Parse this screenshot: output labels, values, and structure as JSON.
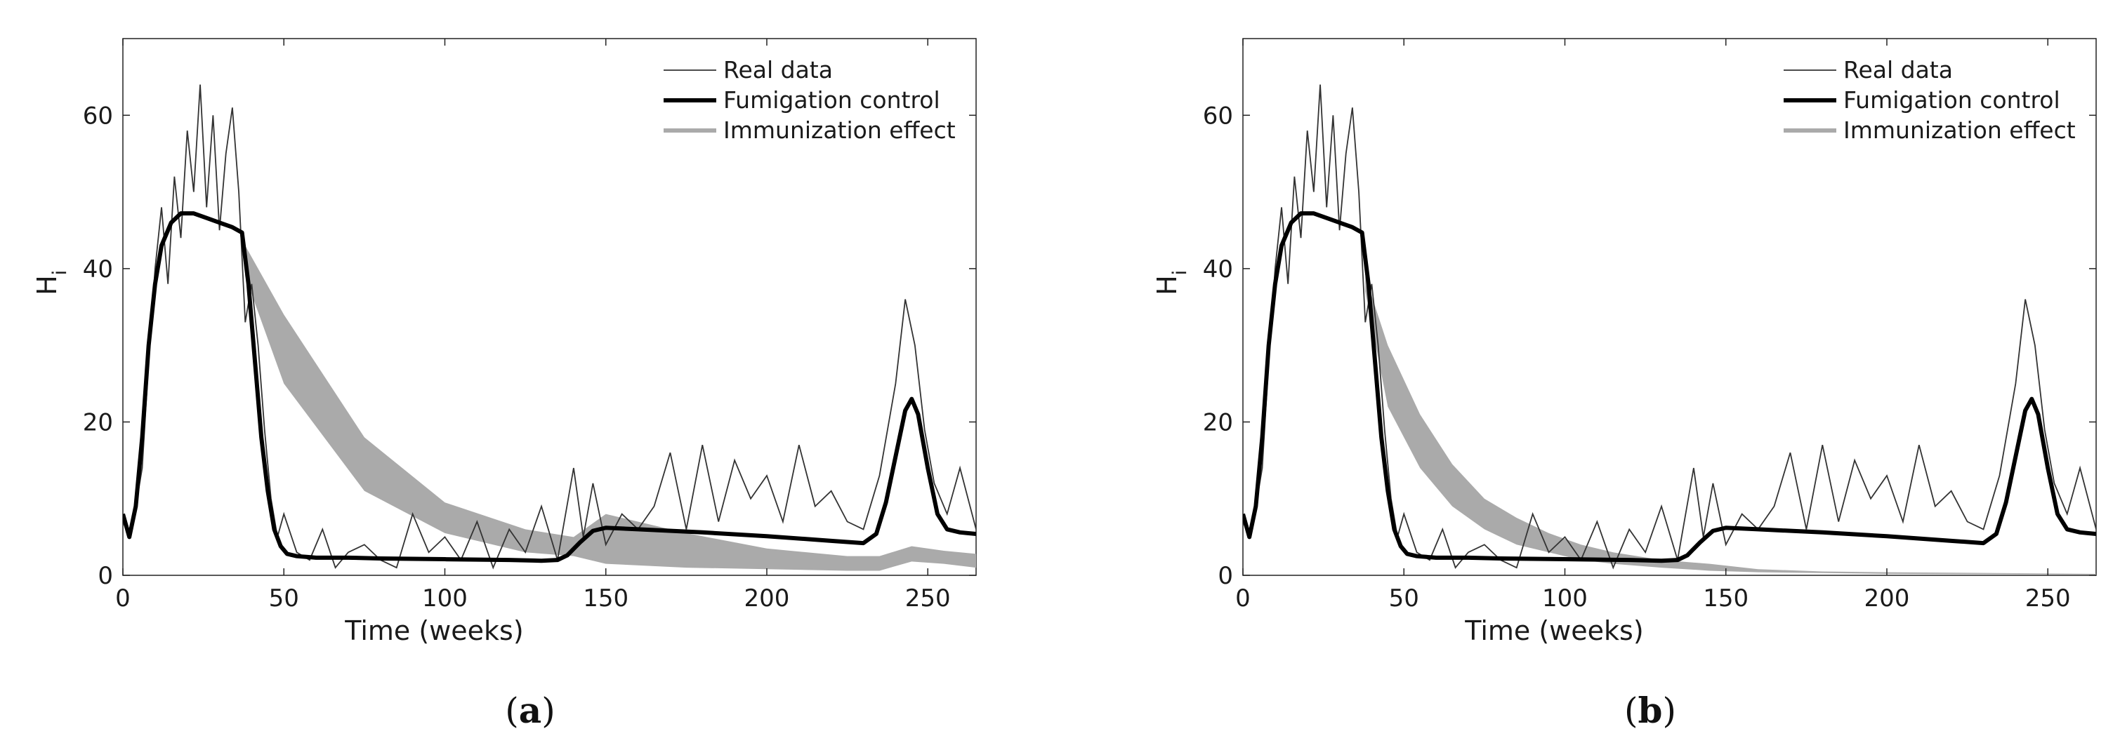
{
  "chart_data": [
    {
      "type": "line",
      "caption": "a",
      "xlabel": "Time (weeks)",
      "ylabel": "H",
      "ylabel_sub": "i",
      "xlim": [
        0,
        265
      ],
      "ylim": [
        0,
        70
      ],
      "xticks": [
        0,
        50,
        100,
        150,
        200,
        250
      ],
      "yticks": [
        0,
        20,
        40,
        60
      ],
      "legend": [
        "Real data",
        "Fumigation control",
        "Immunization effect"
      ],
      "legend_position": "top-right",
      "colors": {
        "real": "#333333",
        "fumigation": "#000000",
        "immunization": "#aaaaaa"
      },
      "series": [
        {
          "name": "Real data",
          "x": [
            0,
            2,
            4,
            6,
            8,
            10,
            12,
            14,
            16,
            18,
            20,
            22,
            24,
            26,
            28,
            30,
            32,
            34,
            36,
            38,
            40,
            42,
            44,
            46,
            48,
            50,
            54,
            58,
            62,
            66,
            70,
            75,
            80,
            85,
            90,
            95,
            100,
            105,
            110,
            115,
            120,
            125,
            130,
            135,
            140,
            143,
            146,
            150,
            155,
            160,
            165,
            170,
            175,
            180,
            185,
            190,
            195,
            200,
            205,
            210,
            215,
            220,
            225,
            230,
            235,
            240,
            243,
            246,
            249,
            252,
            256,
            260,
            265
          ],
          "values": [
            7,
            5,
            9,
            14,
            28,
            40,
            48,
            38,
            52,
            44,
            58,
            50,
            64,
            48,
            60,
            45,
            55,
            61,
            50,
            33,
            38,
            30,
            19,
            10,
            5,
            8,
            3,
            2,
            6,
            1,
            3,
            4,
            2,
            1,
            8,
            3,
            5,
            2,
            7,
            1,
            6,
            3,
            9,
            2,
            14,
            5,
            12,
            4,
            8,
            6,
            9,
            16,
            6,
            17,
            7,
            15,
            10,
            13,
            7,
            17,
            9,
            11,
            7,
            6,
            13,
            25,
            36,
            30,
            19,
            12,
            8,
            14,
            6
          ]
        },
        {
          "name": "Fumigation control",
          "x": [
            0,
            2,
            4,
            6,
            8,
            10,
            12,
            15,
            18,
            22,
            26,
            30,
            34,
            37,
            39,
            41,
            43,
            45,
            47,
            49,
            51,
            54,
            57,
            60,
            70,
            80,
            100,
            120,
            130,
            135,
            138,
            142,
            146,
            150,
            160,
            180,
            200,
            220,
            230,
            234,
            237,
            240,
            243,
            245,
            247,
            250,
            253,
            256,
            260,
            265
          ],
          "values": [
            8,
            5,
            9,
            18,
            30,
            38,
            43,
            46,
            47.2,
            47.2,
            46.6,
            46,
            45.4,
            44.7,
            38,
            28,
            18,
            11,
            6,
            3.8,
            2.8,
            2.5,
            2.4,
            2.3,
            2.3,
            2.2,
            2.1,
            2,
            1.9,
            2,
            2.6,
            4.3,
            5.8,
            6.2,
            6.0,
            5.6,
            5.1,
            4.5,
            4.2,
            5.4,
            9.5,
            15.5,
            21.5,
            23,
            21,
            14,
            8,
            6,
            5.6,
            5.4
          ]
        },
        {
          "name": "Immunization effect",
          "x": [
            38,
            50,
            75,
            100,
            125,
            140,
            150,
            175,
            200,
            225,
            235,
            245,
            255,
            265
          ],
          "lower": [
            39,
            25,
            11,
            5.5,
            3,
            2.5,
            1.5,
            1,
            0.8,
            0.6,
            0.6,
            1.8,
            1.5,
            1
          ],
          "upper": [
            43,
            34,
            18,
            9.5,
            6,
            5,
            8,
            5.5,
            3.5,
            2.5,
            2.5,
            3.8,
            3.2,
            2.8
          ]
        }
      ]
    },
    {
      "type": "line",
      "caption": "b",
      "xlabel": "Time (weeks)",
      "ylabel": "H",
      "ylabel_sub": "i",
      "xlim": [
        0,
        265
      ],
      "ylim": [
        0,
        70
      ],
      "xticks": [
        0,
        50,
        100,
        150,
        200,
        250
      ],
      "yticks": [
        0,
        20,
        40,
        60
      ],
      "legend": [
        "Real data",
        "Fumigation control",
        "Immunization effect"
      ],
      "legend_position": "top-right",
      "colors": {
        "real": "#333333",
        "fumigation": "#000000",
        "immunization": "#aaaaaa"
      },
      "series": [
        {
          "name": "Real data",
          "x": [
            0,
            2,
            4,
            6,
            8,
            10,
            12,
            14,
            16,
            18,
            20,
            22,
            24,
            26,
            28,
            30,
            32,
            34,
            36,
            38,
            40,
            42,
            44,
            46,
            48,
            50,
            54,
            58,
            62,
            66,
            70,
            75,
            80,
            85,
            90,
            95,
            100,
            105,
            110,
            115,
            120,
            125,
            130,
            135,
            140,
            143,
            146,
            150,
            155,
            160,
            165,
            170,
            175,
            180,
            185,
            190,
            195,
            200,
            205,
            210,
            215,
            220,
            225,
            230,
            235,
            240,
            243,
            246,
            249,
            252,
            256,
            260,
            265
          ],
          "values": [
            7,
            5,
            9,
            14,
            28,
            40,
            48,
            38,
            52,
            44,
            58,
            50,
            64,
            48,
            60,
            45,
            55,
            61,
            50,
            33,
            38,
            30,
            19,
            10,
            5,
            8,
            3,
            2,
            6,
            1,
            3,
            4,
            2,
            1,
            8,
            3,
            5,
            2,
            7,
            1,
            6,
            3,
            9,
            2,
            14,
            5,
            12,
            4,
            8,
            6,
            9,
            16,
            6,
            17,
            7,
            15,
            10,
            13,
            7,
            17,
            9,
            11,
            7,
            6,
            13,
            25,
            36,
            30,
            19,
            12,
            8,
            14,
            6
          ]
        },
        {
          "name": "Fumigation control",
          "x": [
            0,
            2,
            4,
            6,
            8,
            10,
            12,
            15,
            18,
            22,
            26,
            30,
            34,
            37,
            39,
            41,
            43,
            45,
            47,
            49,
            51,
            54,
            57,
            60,
            70,
            80,
            100,
            120,
            130,
            135,
            138,
            142,
            146,
            150,
            160,
            180,
            200,
            220,
            230,
            234,
            237,
            240,
            243,
            245,
            247,
            250,
            253,
            256,
            260,
            265
          ],
          "values": [
            8,
            5,
            9,
            18,
            30,
            38,
            43,
            46,
            47.2,
            47.2,
            46.6,
            46,
            45.4,
            44.7,
            38,
            28,
            18,
            11,
            6,
            3.8,
            2.8,
            2.5,
            2.4,
            2.3,
            2.3,
            2.2,
            2.1,
            2,
            1.9,
            2,
            2.6,
            4.3,
            5.8,
            6.2,
            6.0,
            5.6,
            5.1,
            4.5,
            4.2,
            5.4,
            9.5,
            15.5,
            21.5,
            23,
            21,
            14,
            8,
            6,
            5.6,
            5.4
          ]
        },
        {
          "name": "Immunization effect",
          "x": [
            38,
            45,
            55,
            65,
            75,
            85,
            95,
            105,
            115,
            130,
            145,
            160,
            180,
            200,
            265
          ],
          "lower": [
            37,
            22,
            14,
            9,
            6,
            4,
            3,
            2,
            1.5,
            1,
            0.6,
            0.4,
            0.3,
            0.2,
            0.1
          ],
          "upper": [
            39,
            30,
            21,
            14.5,
            10,
            7.5,
            5.5,
            4,
            3,
            2,
            1.5,
            0.8,
            0.5,
            0.4,
            0.2
          ]
        }
      ]
    }
  ]
}
